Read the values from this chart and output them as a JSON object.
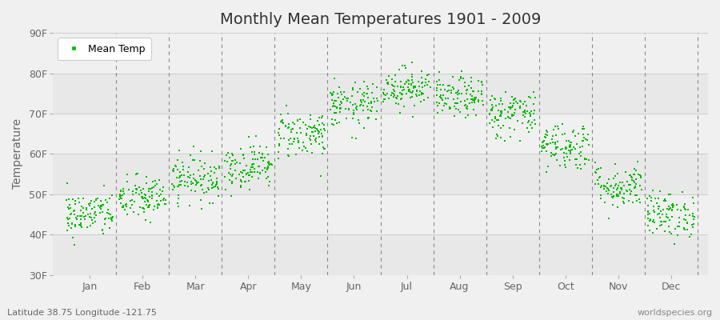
{
  "title": "Monthly Mean Temperatures 1901 - 2009",
  "ylabel": "Temperature",
  "subtitle": "Latitude 38.75 Longitude -121.75",
  "watermark": "worldspecies.org",
  "legend_label": "Mean Temp",
  "marker_color": "#00BB00",
  "bg_light": "#f0f0f0",
  "bg_band1": "#e8e8e8",
  "bg_band2": "#f0f0f0",
  "grid_color": "#cccccc",
  "vline_color": "#888888",
  "ylim": [
    30,
    90
  ],
  "yticks": [
    30,
    40,
    50,
    60,
    70,
    80,
    90
  ],
  "ytick_labels": [
    "30F",
    "40F",
    "50F",
    "60F",
    "70F",
    "80F",
    "90F"
  ],
  "months": [
    "Jan",
    "Feb",
    "Mar",
    "Apr",
    "May",
    "Jun",
    "Jul",
    "Aug",
    "Sep",
    "Oct",
    "Nov",
    "Dec"
  ],
  "monthly_means": [
    45.0,
    49.0,
    54.0,
    57.0,
    65.0,
    72.0,
    76.5,
    74.0,
    70.0,
    62.0,
    52.0,
    45.0
  ],
  "monthly_stds": [
    2.8,
    2.8,
    2.8,
    2.8,
    3.0,
    2.8,
    2.5,
    2.5,
    3.0,
    3.0,
    2.8,
    2.8
  ],
  "n_years": 109,
  "seed": 42,
  "marker_size": 4,
  "title_fontsize": 14,
  "tick_fontsize": 9,
  "ylabel_fontsize": 10
}
